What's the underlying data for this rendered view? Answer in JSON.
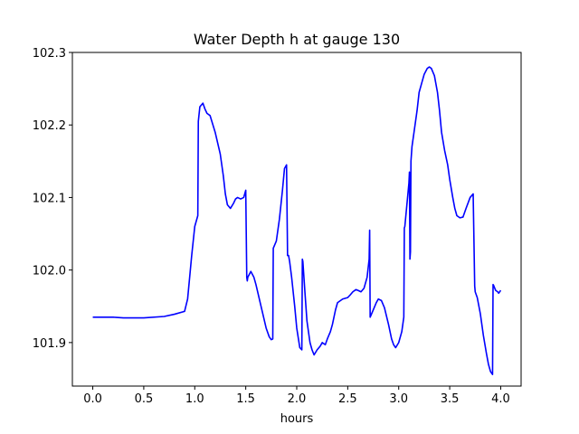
{
  "chart_data": {
    "type": "line",
    "title": "Water Depth h at gauge 130",
    "xlabel": "hours",
    "ylabel": "",
    "xlim": [
      -0.2,
      4.2
    ],
    "ylim": [
      101.84,
      102.3
    ],
    "xticks": [
      0.0,
      0.5,
      1.0,
      1.5,
      2.0,
      2.5,
      3.0,
      3.5,
      4.0
    ],
    "xtick_labels": [
      "0.0",
      "0.5",
      "1.0",
      "1.5",
      "2.0",
      "2.5",
      "3.0",
      "3.5",
      "4.0"
    ],
    "yticks": [
      101.9,
      102.0,
      102.1,
      102.2,
      102.3
    ],
    "ytick_labels": [
      "101.9",
      "102.0",
      "102.1",
      "102.2",
      "102.3"
    ],
    "grid": false,
    "series": [
      {
        "color": "#0000ff",
        "x": [
          0.0,
          0.2,
          0.3,
          0.5,
          0.7,
          0.8,
          0.9,
          0.93,
          0.95,
          0.97,
          1.0,
          1.03,
          1.035,
          1.05,
          1.08,
          1.1,
          1.12,
          1.15,
          1.2,
          1.25,
          1.28,
          1.3,
          1.32,
          1.35,
          1.38,
          1.4,
          1.42,
          1.45,
          1.48,
          1.5,
          1.51,
          1.515,
          1.52,
          1.55,
          1.58,
          1.6,
          1.65,
          1.7,
          1.73,
          1.75,
          1.765,
          1.77,
          1.8,
          1.83,
          1.86,
          1.88,
          1.9,
          1.91,
          1.92,
          1.93,
          1.95,
          1.98,
          2.0,
          2.03,
          2.05,
          2.055,
          2.06,
          2.08,
          2.1,
          2.13,
          2.15,
          2.17,
          2.2,
          2.23,
          2.25,
          2.28,
          2.3,
          2.33,
          2.35,
          2.38,
          2.4,
          2.45,
          2.5,
          2.52,
          2.55,
          2.58,
          2.6,
          2.63,
          2.66,
          2.69,
          2.71,
          2.715,
          2.72,
          2.75,
          2.78,
          2.8,
          2.83,
          2.86,
          2.9,
          2.93,
          2.95,
          2.97,
          3.0,
          3.03,
          3.05,
          3.055,
          3.06,
          3.08,
          3.1,
          3.105,
          3.11,
          3.115,
          3.12,
          3.13,
          3.15,
          3.18,
          3.2,
          3.23,
          3.25,
          3.28,
          3.3,
          3.32,
          3.35,
          3.38,
          3.4,
          3.42,
          3.45,
          3.48,
          3.5,
          3.53,
          3.55,
          3.57,
          3.6,
          3.63,
          3.66,
          3.7,
          3.73,
          3.745,
          3.75,
          3.77,
          3.8,
          3.83,
          3.86,
          3.88,
          3.9,
          3.92,
          3.925,
          3.93,
          3.95,
          3.97,
          3.98,
          4.0
        ],
        "y": [
          101.935,
          101.935,
          101.934,
          101.934,
          101.936,
          101.939,
          101.943,
          101.96,
          101.99,
          102.02,
          102.06,
          102.075,
          102.205,
          102.225,
          102.23,
          102.222,
          102.216,
          102.213,
          102.19,
          102.16,
          102.13,
          102.105,
          102.09,
          102.085,
          102.092,
          102.098,
          102.1,
          102.098,
          102.1,
          102.11,
          101.99,
          101.985,
          101.99,
          101.998,
          101.99,
          101.98,
          101.95,
          101.92,
          101.908,
          101.904,
          101.905,
          102.03,
          102.04,
          102.07,
          102.11,
          102.14,
          102.145,
          102.02,
          102.02,
          102.012,
          101.99,
          101.95,
          101.92,
          101.893,
          101.89,
          102.015,
          102.012,
          101.97,
          101.93,
          101.9,
          101.89,
          101.883,
          101.89,
          101.895,
          101.9,
          101.897,
          101.905,
          101.915,
          101.925,
          101.945,
          101.955,
          101.96,
          101.962,
          101.965,
          101.97,
          101.973,
          101.972,
          101.97,
          101.975,
          101.99,
          102.015,
          102.055,
          101.935,
          101.945,
          101.955,
          101.96,
          101.958,
          101.948,
          101.925,
          101.905,
          101.897,
          101.893,
          101.9,
          101.915,
          101.935,
          102.058,
          102.06,
          102.09,
          102.12,
          102.135,
          102.015,
          102.025,
          102.15,
          102.17,
          102.19,
          102.22,
          102.245,
          102.26,
          102.27,
          102.278,
          102.28,
          102.278,
          102.268,
          102.245,
          102.22,
          102.19,
          102.165,
          102.145,
          102.125,
          102.1,
          102.085,
          102.075,
          102.072,
          102.073,
          102.085,
          102.1,
          102.105,
          101.978,
          101.97,
          101.962,
          101.94,
          101.91,
          101.885,
          101.87,
          101.86,
          101.856,
          101.98,
          101.979,
          101.972,
          101.97,
          101.968,
          101.972
        ]
      }
    ]
  }
}
